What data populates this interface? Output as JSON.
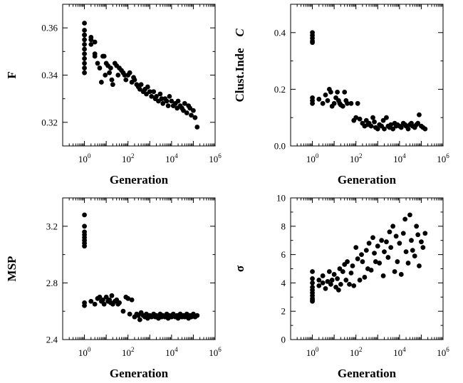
{
  "chart_data": [
    {
      "type": "scatter",
      "panel": "top-left",
      "title": "",
      "xlabel": "Generation",
      "ylabel": "F",
      "xscale": "log",
      "xlim": [
        0.1,
        1000000
      ],
      "ylim": [
        0.31,
        0.37
      ],
      "xticks": [
        1,
        100,
        10000,
        1000000
      ],
      "yticks": [
        0.32,
        0.34,
        0.36
      ],
      "ytick_labels": [
        "0.32",
        "0.34",
        "0.36"
      ],
      "grid": false,
      "series": [
        {
          "marker": "filled-circle",
          "x": [
            1,
            1,
            1,
            1,
            1,
            1,
            1,
            1,
            1,
            1,
            1,
            1,
            2,
            2,
            2,
            3,
            3,
            3,
            4,
            5,
            6,
            7,
            8,
            9,
            10,
            12,
            14,
            16,
            18,
            20,
            25,
            30,
            35,
            40,
            50,
            60,
            70,
            80,
            100,
            120,
            150,
            180,
            200,
            250,
            300,
            350,
            400,
            500,
            600,
            700,
            800,
            1000,
            1200,
            1500,
            1800,
            2000,
            2500,
            3000,
            3500,
            4000,
            5000,
            6000,
            7000,
            8000,
            10000,
            12000,
            15000,
            18000,
            20000,
            25000,
            30000,
            35000,
            40000,
            50000,
            60000,
            70000,
            80000,
            100000,
            120000,
            150000
          ],
          "y": [
            0.362,
            0.359,
            0.357,
            0.355,
            0.353,
            0.351,
            0.349,
            0.347,
            0.345,
            0.343,
            0.341,
            0.357,
            0.356,
            0.355,
            0.353,
            0.354,
            0.349,
            0.348,
            0.345,
            0.343,
            0.337,
            0.348,
            0.348,
            0.34,
            0.345,
            0.344,
            0.341,
            0.343,
            0.338,
            0.336,
            0.345,
            0.344,
            0.34,
            0.343,
            0.342,
            0.341,
            0.34,
            0.338,
            0.34,
            0.341,
            0.337,
            0.339,
            0.338,
            0.336,
            0.335,
            0.334,
            0.336,
            0.333,
            0.334,
            0.332,
            0.335,
            0.333,
            0.331,
            0.333,
            0.33,
            0.331,
            0.329,
            0.332,
            0.33,
            0.328,
            0.33,
            0.329,
            0.327,
            0.331,
            0.329,
            0.327,
            0.328,
            0.326,
            0.329,
            0.327,
            0.326,
            0.325,
            0.328,
            0.324,
            0.327,
            0.326,
            0.323,
            0.325,
            0.322,
            0.318
          ]
        }
      ]
    },
    {
      "type": "scatter",
      "panel": "top-right",
      "title": "",
      "xlabel": "Generation",
      "ylabel": "Clust.Inde",
      "ylabel_symbol": "C",
      "xscale": "log",
      "xlim": [
        0.1,
        1000000
      ],
      "ylim": [
        0.0,
        0.5
      ],
      "xticks": [
        1,
        100,
        10000,
        1000000
      ],
      "yticks": [
        0.0,
        0.2,
        0.4
      ],
      "ytick_labels": [
        "0.0",
        "0.2",
        "0.4"
      ],
      "grid": false,
      "series": [
        {
          "marker": "filled-circle",
          "x": [
            1,
            1,
            1,
            1,
            1,
            1,
            1,
            1,
            2,
            3,
            4,
            5,
            6,
            7,
            8,
            10,
            12,
            14,
            16,
            18,
            20,
            25,
            30,
            35,
            40,
            60,
            80,
            100,
            120,
            150,
            200,
            250,
            300,
            350,
            400,
            500,
            600,
            700,
            800,
            1000,
            1200,
            1500,
            1800,
            2000,
            2500,
            3000,
            3500,
            4000,
            5000,
            6000,
            7000,
            8000,
            10000,
            12000,
            15000,
            18000,
            20000,
            25000,
            30000,
            35000,
            40000,
            50000,
            60000,
            70000,
            80000,
            100000,
            120000,
            150000
          ],
          "y": [
            0.4,
            0.39,
            0.38,
            0.37,
            0.365,
            0.16,
            0.17,
            0.15,
            0.165,
            0.15,
            0.18,
            0.16,
            0.2,
            0.19,
            0.14,
            0.15,
            0.17,
            0.19,
            0.16,
            0.15,
            0.145,
            0.14,
            0.19,
            0.16,
            0.15,
            0.15,
            0.09,
            0.1,
            0.15,
            0.095,
            0.08,
            0.07,
            0.09,
            0.075,
            0.08,
            0.07,
            0.1,
            0.085,
            0.065,
            0.06,
            0.075,
            0.07,
            0.09,
            0.06,
            0.1,
            0.07,
            0.065,
            0.075,
            0.06,
            0.08,
            0.07,
            0.075,
            0.07,
            0.065,
            0.08,
            0.075,
            0.07,
            0.06,
            0.075,
            0.08,
            0.07,
            0.065,
            0.075,
            0.08,
            0.11,
            0.07,
            0.065,
            0.06
          ]
        }
      ]
    },
    {
      "type": "scatter",
      "panel": "bottom-left",
      "title": "",
      "xlabel": "Generation",
      "ylabel": "MSP",
      "xscale": "log",
      "xlim": [
        0.1,
        1000000
      ],
      "ylim": [
        2.4,
        3.4
      ],
      "xticks": [
        1,
        100,
        10000,
        1000000
      ],
      "yticks": [
        2.4,
        2.8,
        3.2
      ],
      "ytick_labels": [
        "2.4",
        "2.8",
        "3.2"
      ],
      "grid": false,
      "series": [
        {
          "marker": "filled-circle",
          "x": [
            1,
            1,
            1,
            1,
            1,
            1,
            1,
            1,
            1,
            1,
            2,
            3,
            4,
            5,
            6,
            7,
            8,
            10,
            12,
            14,
            16,
            18,
            20,
            25,
            30,
            35,
            40,
            60,
            80,
            100,
            120,
            150,
            200,
            250,
            300,
            350,
            400,
            500,
            600,
            700,
            800,
            1000,
            1200,
            1500,
            1800,
            2000,
            2500,
            3000,
            3500,
            4000,
            5000,
            6000,
            7000,
            8000,
            10000,
            12000,
            15000,
            18000,
            20000,
            25000,
            30000,
            35000,
            40000,
            50000,
            60000,
            70000,
            80000,
            100000,
            120000,
            150000
          ],
          "y": [
            3.28,
            3.2,
            3.16,
            3.14,
            3.12,
            3.1,
            3.08,
            3.06,
            2.66,
            2.64,
            2.67,
            2.65,
            2.69,
            2.7,
            2.67,
            2.68,
            2.65,
            2.7,
            2.67,
            2.68,
            2.66,
            2.71,
            2.65,
            2.67,
            2.68,
            2.65,
            2.66,
            2.6,
            2.7,
            2.69,
            2.58,
            2.68,
            2.56,
            2.58,
            2.57,
            2.54,
            2.59,
            2.57,
            2.56,
            2.58,
            2.55,
            2.57,
            2.56,
            2.58,
            2.56,
            2.57,
            2.55,
            2.58,
            2.56,
            2.57,
            2.56,
            2.58,
            2.55,
            2.57,
            2.56,
            2.58,
            2.56,
            2.57,
            2.55,
            2.58,
            2.56,
            2.57,
            2.56,
            2.58,
            2.55,
            2.57,
            2.56,
            2.58,
            2.56,
            2.57
          ]
        }
      ]
    },
    {
      "type": "scatter",
      "panel": "bottom-right",
      "title": "",
      "xlabel": "Generation",
      "ylabel": "σ",
      "xscale": "log",
      "xlim": [
        0.1,
        1000000
      ],
      "ylim": [
        0,
        10
      ],
      "xticks": [
        1,
        100,
        10000,
        1000000
      ],
      "yticks": [
        0,
        2,
        4,
        6,
        8,
        10
      ],
      "ytick_labels": [
        "0",
        "2",
        "4",
        "6",
        "8",
        "10"
      ],
      "grid": false,
      "series": [
        {
          "marker": "filled-circle",
          "x": [
            1,
            1,
            1,
            1,
            1,
            1,
            1,
            1,
            1,
            1,
            2,
            2,
            3,
            3,
            4,
            5,
            6,
            7,
            8,
            10,
            12,
            14,
            16,
            18,
            20,
            25,
            30,
            35,
            40,
            50,
            60,
            70,
            80,
            100,
            120,
            150,
            180,
            200,
            250,
            300,
            350,
            400,
            500,
            600,
            700,
            800,
            1000,
            1200,
            1500,
            1800,
            2000,
            2500,
            3000,
            3500,
            4000,
            5000,
            6000,
            7000,
            8000,
            10000,
            12000,
            15000,
            18000,
            20000,
            25000,
            30000,
            35000,
            40000,
            50000,
            60000,
            70000,
            80000,
            100000,
            120000,
            150000
          ],
          "y": [
            4.8,
            4.3,
            4.0,
            3.7,
            3.5,
            3.3,
            3.1,
            2.9,
            2.8,
            2.7,
            4.2,
            3.8,
            4.5,
            4.0,
            3.6,
            4.1,
            4.8,
            3.9,
            4.2,
            4.6,
            3.7,
            4.3,
            3.5,
            5.0,
            3.9,
            4.8,
            5.3,
            4.2,
            5.5,
            3.9,
            4.7,
            5.2,
            3.8,
            6.5,
            5.7,
            4.2,
            6.0,
            5.5,
            4.4,
            6.3,
            5.0,
            6.8,
            4.9,
            7.2,
            6.1,
            5.5,
            6.6,
            5.4,
            7.0,
            4.5,
            6.2,
            6.9,
            5.8,
            7.6,
            6.5,
            8.0,
            4.8,
            7.3,
            5.5,
            6.8,
            4.6,
            7.5,
            8.5,
            6.2,
            5.4,
            8.8,
            7.0,
            6.3,
            5.9,
            8.0,
            7.4,
            5.2,
            6.9,
            6.5,
            7.5
          ]
        }
      ]
    }
  ]
}
